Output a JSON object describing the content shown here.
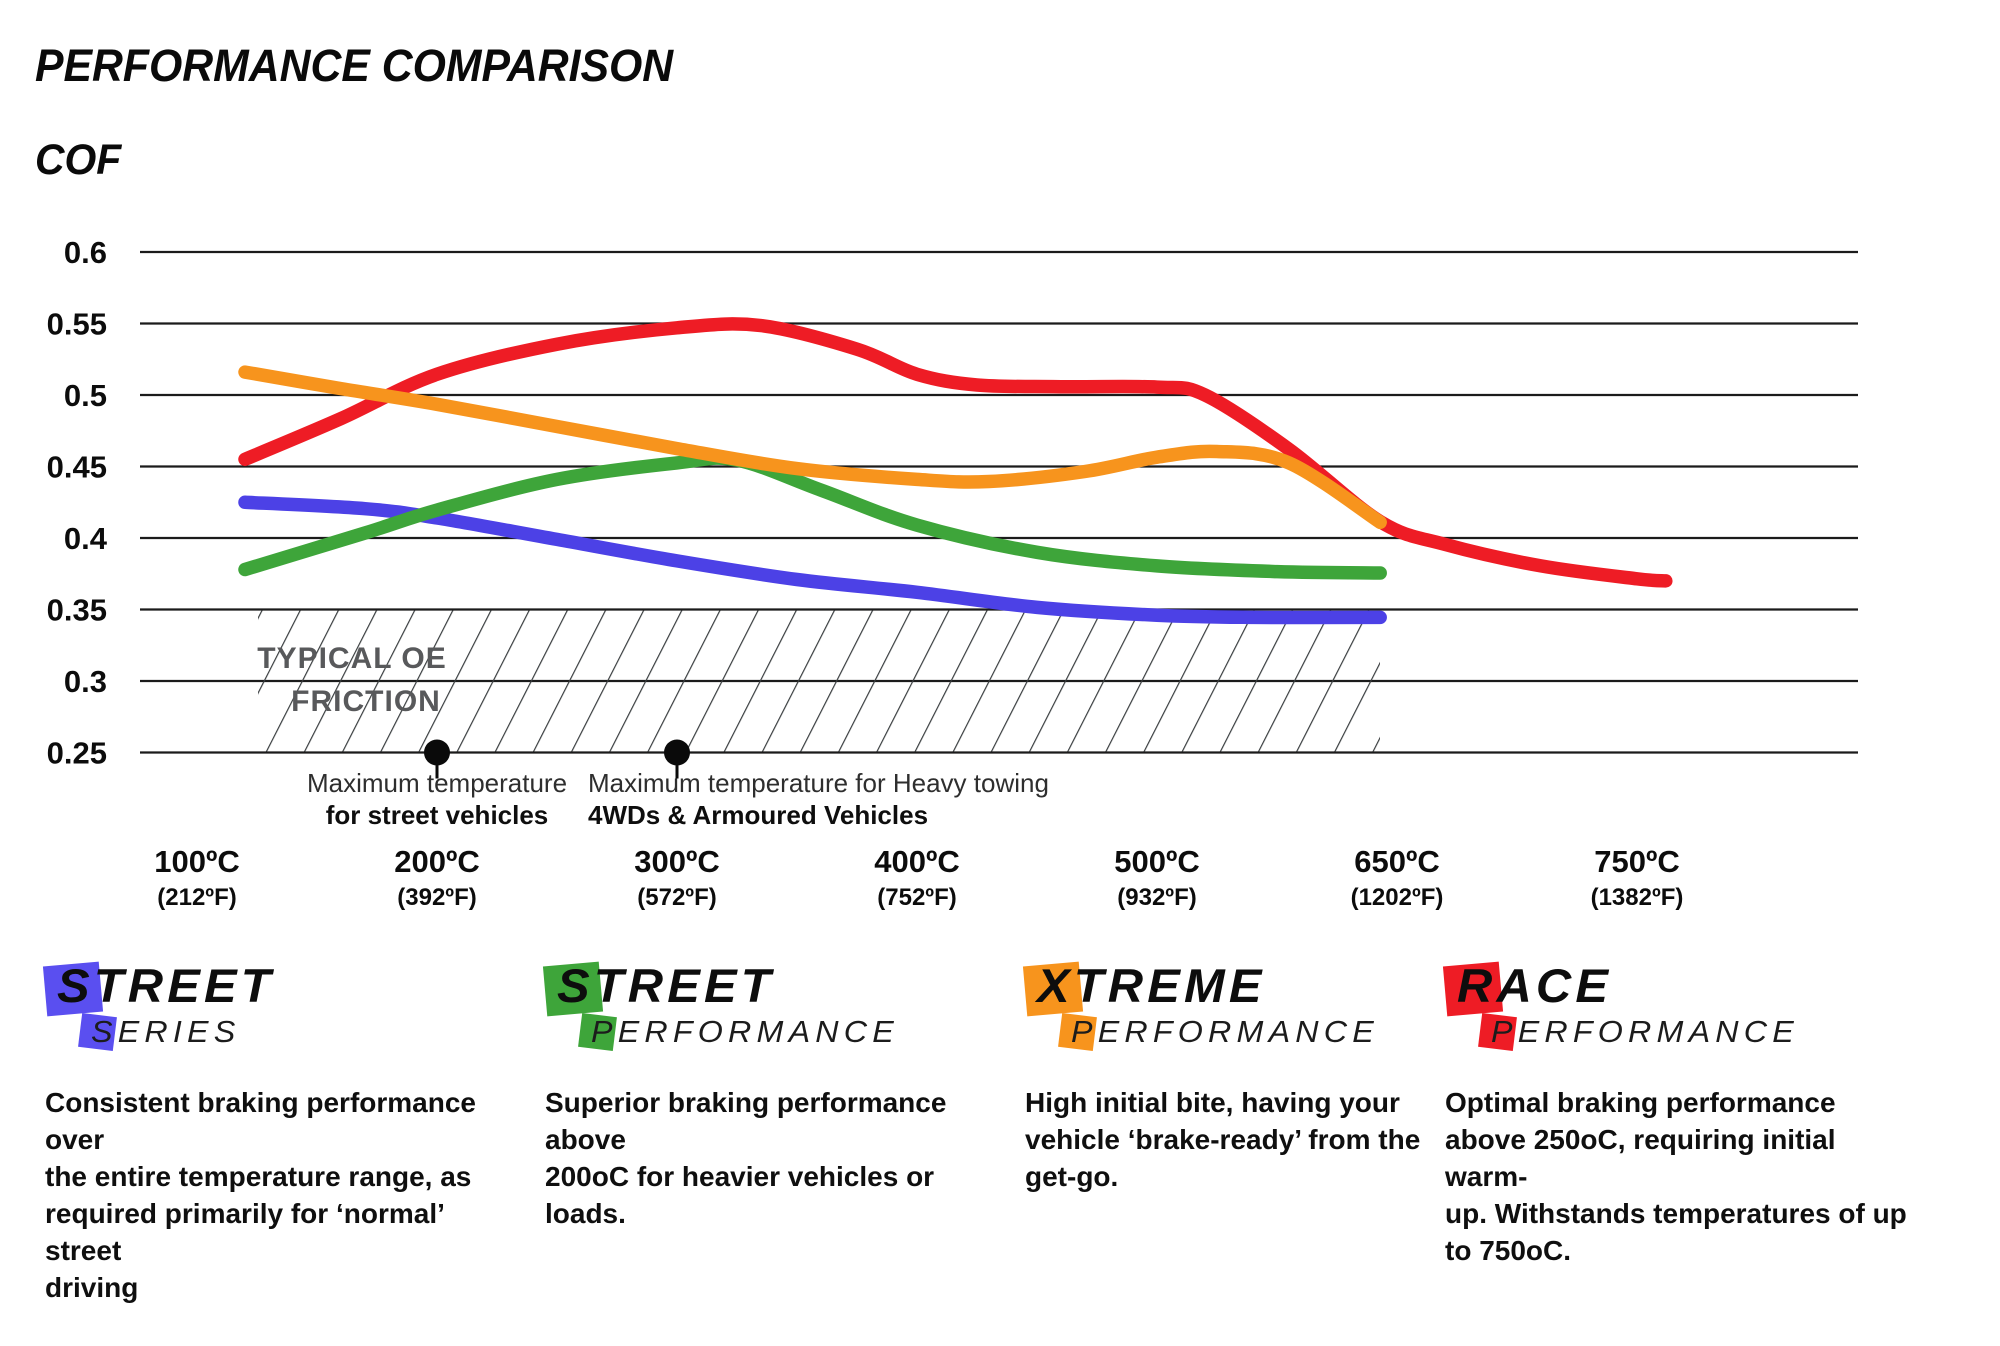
{
  "page": {
    "title": "PERFORMANCE COMPARISON",
    "y_axis_title": "COF"
  },
  "chart": {
    "grid_color": "#1b1b1b",
    "hatch_line_color": "#393d3f",
    "oe_zone": {
      "line1": "TYPICAL OE",
      "line2": "FRICTION"
    },
    "y_ticks": [
      {
        "label": "0.6",
        "v": 0.6
      },
      {
        "label": "0.55",
        "v": 0.55
      },
      {
        "label": "0.5",
        "v": 0.5
      },
      {
        "label": "0.45",
        "v": 0.45
      },
      {
        "label": "0.4",
        "v": 0.4
      },
      {
        "label": "0.35",
        "v": 0.35
      },
      {
        "label": "0.3",
        "v": 0.3
      },
      {
        "label": "0.25",
        "v": 0.25
      }
    ],
    "x_ticks": [
      {
        "c": "100ºC",
        "f": "(212ºF)"
      },
      {
        "c": "200ºC",
        "f": "(392ºF)"
      },
      {
        "c": "300ºC",
        "f": "(572ºF)"
      },
      {
        "c": "400ºC",
        "f": "(752ºF)"
      },
      {
        "c": "500ºC",
        "f": "(932ºF)"
      },
      {
        "c": "650ºC",
        "f": "(1202ºF)"
      },
      {
        "c": "750ºC",
        "f": "(1382ºF)"
      }
    ],
    "annotations": [
      {
        "tick_index": 1,
        "align": "center",
        "line1": "Maximum temperature",
        "line2": "for street vehicles"
      },
      {
        "tick_index": 2,
        "align": "left",
        "line1": "Maximum temperature for Heavy towing",
        "line2": "4WDs & Armoured Vehicles"
      }
    ]
  },
  "chart_data": {
    "type": "line",
    "title": "PERFORMANCE COMPARISON",
    "ylabel": "COF",
    "categories_c": [
      100,
      200,
      300,
      400,
      500,
      650,
      750
    ],
    "categories_f": [
      212,
      392,
      572,
      752,
      932,
      1202,
      1382
    ],
    "ylim": [
      0.25,
      0.6
    ],
    "y_tick_step": 0.05,
    "grid": "horizontal gridlines only",
    "legend_position": "bottom",
    "oe_friction_band": {
      "label": "TYPICAL OE FRICTION",
      "y_range": [
        0.25,
        0.35
      ],
      "style": "hatched"
    },
    "marker_dots": [
      {
        "at_c": 200,
        "cof": 0.25,
        "meaning": "Maximum temperature for street vehicles"
      },
      {
        "at_c": 300,
        "cof": 0.25,
        "meaning": "Maximum temperature for Heavy towing 4WDs & Armoured Vehicles"
      }
    ],
    "series": [
      {
        "name": "Street Series",
        "color": "#4C41E6",
        "values_at_categories": [
          0.425,
          0.414,
          0.384,
          0.362,
          0.346,
          0.345,
          null
        ],
        "path_points": [
          [
            0.2,
            0.425
          ],
          [
            0.7,
            0.4205
          ],
          [
            1,
            0.414
          ],
          [
            1.5,
            0.399
          ],
          [
            2,
            0.384
          ],
          [
            2.5,
            0.371
          ],
          [
            3,
            0.362
          ],
          [
            3.5,
            0.3515
          ],
          [
            4,
            0.346
          ],
          [
            4.4,
            0.3445
          ],
          [
            4.93,
            0.3445
          ]
        ]
      },
      {
        "name": "Street Performance",
        "color": "#3EA53A",
        "values_at_categories": [
          0.378,
          0.42,
          0.453,
          0.409,
          0.381,
          0.376,
          null
        ],
        "path_points": [
          [
            0.2,
            0.378
          ],
          [
            0.7,
            0.4035
          ],
          [
            1,
            0.4195
          ],
          [
            1.5,
            0.441
          ],
          [
            2,
            0.4525
          ],
          [
            2.25,
            0.4545
          ],
          [
            2.6,
            0.4335
          ],
          [
            3,
            0.409
          ],
          [
            3.5,
            0.39
          ],
          [
            4,
            0.3805
          ],
          [
            4.5,
            0.3765
          ],
          [
            4.93,
            0.3755
          ]
        ]
      },
      {
        "name": "Xtreme Performance",
        "color": "#F7941D",
        "values_at_categories": [
          0.516,
          0.494,
          0.463,
          0.441,
          0.457,
          0.411,
          null
        ],
        "path_points": [
          [
            0.2,
            0.516
          ],
          [
            0.6,
            0.5045
          ],
          [
            1,
            0.4935
          ],
          [
            1.5,
            0.478
          ],
          [
            2,
            0.4625
          ],
          [
            2.5,
            0.4485
          ],
          [
            3,
            0.441
          ],
          [
            3.3,
            0.4395
          ],
          [
            3.7,
            0.4465
          ],
          [
            4,
            0.4565
          ],
          [
            4.25,
            0.4605
          ],
          [
            4.55,
            0.4525
          ],
          [
            4.93,
            0.411
          ]
        ]
      },
      {
        "name": "Race Performance",
        "color": "#EE1C25",
        "values_at_categories": [
          0.455,
          0.515,
          0.547,
          0.514,
          0.506,
          0.41,
          0.37
        ],
        "path_points": [
          [
            0.2,
            0.455
          ],
          [
            0.6,
            0.4835
          ],
          [
            1,
            0.5145
          ],
          [
            1.5,
            0.5355
          ],
          [
            2,
            0.547
          ],
          [
            2.35,
            0.5485
          ],
          [
            2.75,
            0.532
          ],
          [
            3,
            0.5145
          ],
          [
            3.25,
            0.507
          ],
          [
            3.6,
            0.5058
          ],
          [
            4,
            0.5055
          ],
          [
            4.2,
            0.5
          ],
          [
            4.55,
            0.462
          ],
          [
            4.93,
            0.4115
          ],
          [
            5.2,
            0.3955
          ],
          [
            5.6,
            0.3805
          ],
          [
            6,
            0.3715
          ],
          [
            6.12,
            0.37
          ]
        ]
      }
    ]
  },
  "legend": {
    "items": [
      {
        "word1": "STREET",
        "word2": "SERIES",
        "color": "#5A4FF0",
        "description_lines": [
          "Consistent braking performance over",
          "the entire temperature range, as",
          "required primarily for ‘normal’ street",
          "driving"
        ]
      },
      {
        "word1": "STREET",
        "word2": "PERFORMANCE",
        "color": "#3EA53A",
        "description_lines": [
          "Superior braking performance above",
          "200oC for heavier vehicles or loads."
        ]
      },
      {
        "word1": "XTREME",
        "word2": "PERFORMANCE",
        "color": "#F7941D",
        "description_lines": [
          "High initial bite, having your",
          "vehicle ‘brake-ready’ from the",
          "get-go."
        ]
      },
      {
        "word1": "RACE",
        "word2": "PERFORMANCE",
        "color": "#EE1C25",
        "description_lines": [
          "Optimal braking performance",
          "above 250oC, requiring initial warm-",
          "up. Withstands temperatures of up",
          "to 750oC."
        ]
      }
    ]
  }
}
